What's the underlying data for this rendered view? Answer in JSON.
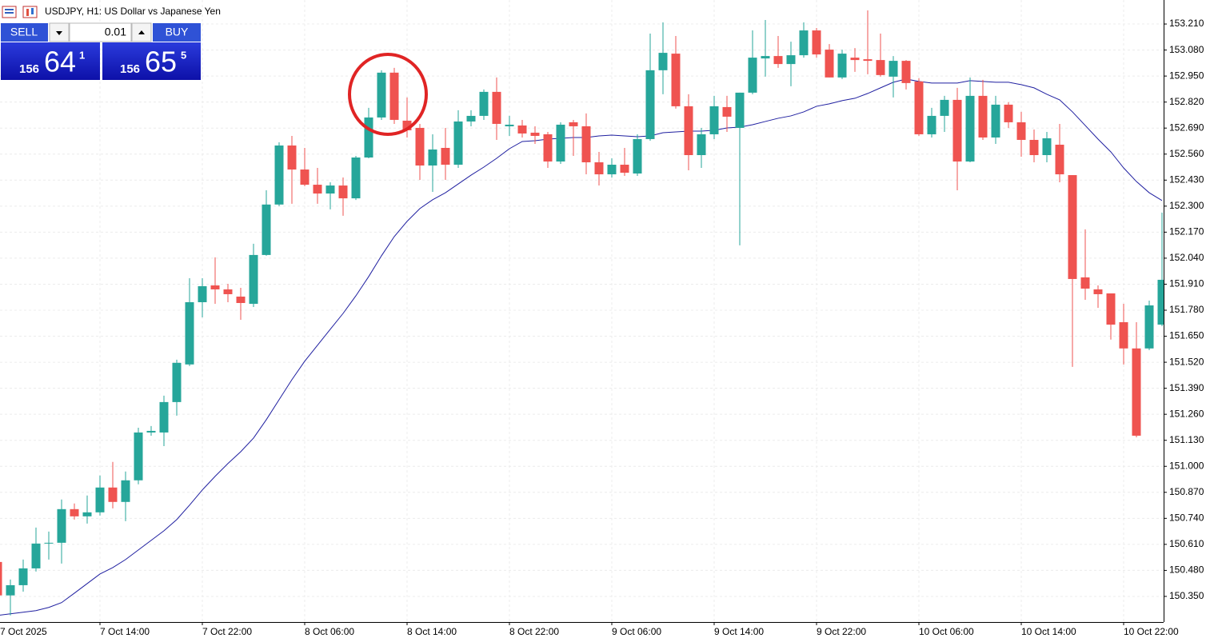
{
  "chart_data": {
    "type": "candlestick",
    "title": "USDJPY, H1:  US Dollar vs Japanese Yen",
    "categories": [
      "7 Oct 2025",
      null,
      null,
      null,
      null,
      null,
      null,
      null,
      "7 Oct 14:00",
      null,
      null,
      null,
      null,
      null,
      null,
      null,
      "7 Oct 22:00",
      null,
      null,
      null,
      null,
      null,
      null,
      null,
      "8 Oct 06:00",
      null,
      null,
      null,
      null,
      null,
      null,
      null,
      "8 Oct 14:00",
      null,
      null,
      null,
      null,
      null,
      null,
      null,
      "8 Oct 22:00",
      null,
      null,
      null,
      null,
      null,
      null,
      null,
      "9 Oct 06:00",
      null,
      null,
      null,
      null,
      null,
      null,
      null,
      "9 Oct 14:00",
      null,
      null,
      null,
      null,
      null,
      null,
      null,
      "9 Oct 22:00",
      null,
      null,
      null,
      null,
      null,
      null,
      null,
      "10 Oct 06:00",
      null,
      null,
      null,
      null,
      null,
      null,
      null,
      "10 Oct 14:00",
      null,
      null,
      null,
      null,
      null,
      null,
      null,
      "10 Oct 22:00",
      null,
      null,
      null
    ],
    "open": [
      150.522,
      150.355,
      150.406,
      150.49,
      150.614,
      150.618,
      150.786,
      150.75,
      150.77,
      150.894,
      150.822,
      150.93,
      151.169,
      151.169,
      151.321,
      151.509,
      151.82,
      151.904,
      151.884,
      151.848,
      151.812,
      152.056,
      152.308,
      152.603,
      152.483,
      152.407,
      152.363,
      152.403,
      152.339,
      152.543,
      152.743,
      152.967,
      152.727,
      152.691,
      152.503,
      152.591,
      152.507,
      152.723,
      152.751,
      152.871,
      152.699,
      152.703,
      152.667,
      152.659,
      152.523,
      152.719,
      152.699,
      152.519,
      152.459,
      152.507,
      152.463,
      152.635,
      152.979,
      153.062,
      152.799,
      152.555,
      152.659,
      152.795,
      152.691,
      152.867,
      153.038,
      153.05,
      153.01,
      153.054,
      153.178,
      153.082,
      152.943,
      153.042,
      153.034,
      153.03,
      152.947,
      153.026,
      152.923,
      152.659,
      152.751,
      152.831,
      152.523,
      152.851,
      152.643,
      152.807,
      152.719,
      152.631,
      152.555,
      152.607,
      152.455,
      151.944,
      151.884,
      151.864,
      151.72,
      151.589,
      151.589,
      151.708
    ],
    "high": [
      150.534,
      150.434,
      150.534,
      150.694,
      150.674,
      150.834,
      150.814,
      150.854,
      150.954,
      151.022,
      150.974,
      151.193,
      151.201,
      151.353,
      151.533,
      151.94,
      151.94,
      152.044,
      151.912,
      151.892,
      152.112,
      152.379,
      152.619,
      152.651,
      152.591,
      152.491,
      152.419,
      152.443,
      152.551,
      152.791,
      152.979,
      152.991,
      152.843,
      152.711,
      152.659,
      152.691,
      152.779,
      152.779,
      152.883,
      152.943,
      152.751,
      152.731,
      152.699,
      152.671,
      152.719,
      152.731,
      152.763,
      152.571,
      152.539,
      152.591,
      152.659,
      153.162,
      153.218,
      153.15,
      152.859,
      152.691,
      152.851,
      152.851,
      152.867,
      153.178,
      153.23,
      153.15,
      153.122,
      153.218,
      153.19,
      153.11,
      153.082,
      153.09,
      153.278,
      153.162,
      153.05,
      153.03,
      152.939,
      152.791,
      152.851,
      152.891,
      152.943,
      152.931,
      152.851,
      152.819,
      152.771,
      152.683,
      152.671,
      152.711,
      152.455,
      152.184,
      151.904,
      151.864,
      151.812,
      151.72,
      151.828,
      152.268
    ],
    "low": [
      150.295,
      150.255,
      150.374,
      150.474,
      150.534,
      150.514,
      150.734,
      150.714,
      150.754,
      150.79,
      150.726,
      150.91,
      151.153,
      151.101,
      151.253,
      151.501,
      151.744,
      151.812,
      151.82,
      151.732,
      151.796,
      152.052,
      152.3,
      152.312,
      152.399,
      152.312,
      152.284,
      152.252,
      152.331,
      152.539,
      152.731,
      152.711,
      152.643,
      152.431,
      152.371,
      152.431,
      152.491,
      152.699,
      152.731,
      152.631,
      152.651,
      152.643,
      152.611,
      152.491,
      152.511,
      152.551,
      152.459,
      152.403,
      152.443,
      152.451,
      152.451,
      152.627,
      152.859,
      152.787,
      152.479,
      152.491,
      152.635,
      152.671,
      152.104,
      152.859,
      152.947,
      152.991,
      152.899,
      153.042,
      153.042,
      152.943,
      152.935,
      152.971,
      152.959,
      152.947,
      152.843,
      152.883,
      152.651,
      152.643,
      152.671,
      152.379,
      152.519,
      152.631,
      152.611,
      152.691,
      152.547,
      152.519,
      152.519,
      152.419,
      151.497,
      151.832,
      151.792,
      151.633,
      151.509,
      151.145,
      151.581,
      151.7
    ],
    "close": [
      150.355,
      150.406,
      150.49,
      150.614,
      150.618,
      150.786,
      150.75,
      150.77,
      150.894,
      150.822,
      150.93,
      151.169,
      151.177,
      151.321,
      151.517,
      151.82,
      151.9,
      151.884,
      151.86,
      151.816,
      152.056,
      152.308,
      152.603,
      152.483,
      152.407,
      152.363,
      152.403,
      152.339,
      152.543,
      152.743,
      152.967,
      152.731,
      152.679,
      152.503,
      152.583,
      152.507,
      152.723,
      152.751,
      152.871,
      152.711,
      152.707,
      152.663,
      152.651,
      152.523,
      152.707,
      152.699,
      152.519,
      152.459,
      152.507,
      152.467,
      152.635,
      152.979,
      153.066,
      152.799,
      152.555,
      152.659,
      152.799,
      152.747,
      152.867,
      153.042,
      153.05,
      153.01,
      153.054,
      153.178,
      153.058,
      152.943,
      153.062,
      153.03,
      153.026,
      152.955,
      153.026,
      152.915,
      152.659,
      152.751,
      152.831,
      152.523,
      152.851,
      152.643,
      152.807,
      152.719,
      152.631,
      152.555,
      152.639,
      152.459,
      151.936,
      151.888,
      151.86,
      151.708,
      151.589,
      151.153,
      151.804,
      151.932
    ],
    "up_color": "#26a69a",
    "down_color": "#ef5350",
    "moving_average": {
      "color": "#1f1fa0",
      "values": [
        150.255,
        150.263,
        150.271,
        150.279,
        150.295,
        150.319,
        150.366,
        150.414,
        150.462,
        150.494,
        150.534,
        150.582,
        150.63,
        150.678,
        150.734,
        150.806,
        150.882,
        150.95,
        151.014,
        151.073,
        151.141,
        151.233,
        151.333,
        151.433,
        151.525,
        151.605,
        151.685,
        151.764,
        151.852,
        151.948,
        152.052,
        152.148,
        152.224,
        152.288,
        152.332,
        152.367,
        152.411,
        152.455,
        152.495,
        152.539,
        152.587,
        152.623,
        152.627,
        152.635,
        152.639,
        152.643,
        152.643,
        152.651,
        152.655,
        152.651,
        152.647,
        152.651,
        152.667,
        152.671,
        152.675,
        152.675,
        152.679,
        152.691,
        152.695,
        152.707,
        152.723,
        152.739,
        152.751,
        152.771,
        152.799,
        152.811,
        152.827,
        152.839,
        152.863,
        152.891,
        152.919,
        152.935,
        152.923,
        152.915,
        152.915,
        152.915,
        152.927,
        152.923,
        152.919,
        152.919,
        152.907,
        152.891,
        152.859,
        152.831,
        152.771,
        152.703,
        152.635,
        152.571,
        152.491,
        152.423,
        152.367,
        152.328
      ]
    },
    "ylim": [
      150.222,
      153.33
    ],
    "yticks": [
      {
        "value": 153.21,
        "label": "153.210"
      },
      {
        "value": 153.08,
        "label": "153.080"
      },
      {
        "value": 152.95,
        "label": "152.950"
      },
      {
        "value": 152.82,
        "label": "152.820"
      },
      {
        "value": 152.69,
        "label": "152.690"
      },
      {
        "value": 152.56,
        "label": "152.560"
      },
      {
        "value": 152.43,
        "label": "152.430"
      },
      {
        "value": 152.3,
        "label": "152.300"
      },
      {
        "value": 152.17,
        "label": "152.170"
      },
      {
        "value": 152.04,
        "label": "152.040"
      },
      {
        "value": 151.91,
        "label": "151.910"
      },
      {
        "value": 151.78,
        "label": "151.780"
      },
      {
        "value": 151.65,
        "label": "151.650"
      },
      {
        "value": 151.52,
        "label": "151.520"
      },
      {
        "value": 151.39,
        "label": "151.390"
      },
      {
        "value": 151.26,
        "label": "151.260"
      },
      {
        "value": 151.13,
        "label": "151.130"
      },
      {
        "value": 151.0,
        "label": "151.000"
      },
      {
        "value": 150.87,
        "label": "150.870"
      },
      {
        "value": 150.74,
        "label": "150.740"
      },
      {
        "value": 150.61,
        "label": "150.610"
      },
      {
        "value": 150.48,
        "label": "150.480"
      },
      {
        "value": 150.35,
        "label": "150.350"
      }
    ],
    "grid": true
  },
  "trade_panel": {
    "sell": "SELL",
    "volume": "0.01",
    "buy": "BUY",
    "sell_price": {
      "big_figure": "156",
      "pips": "64",
      "point": "1"
    },
    "buy_price": {
      "big_figure": "156",
      "pips": "65",
      "point": "5"
    }
  }
}
